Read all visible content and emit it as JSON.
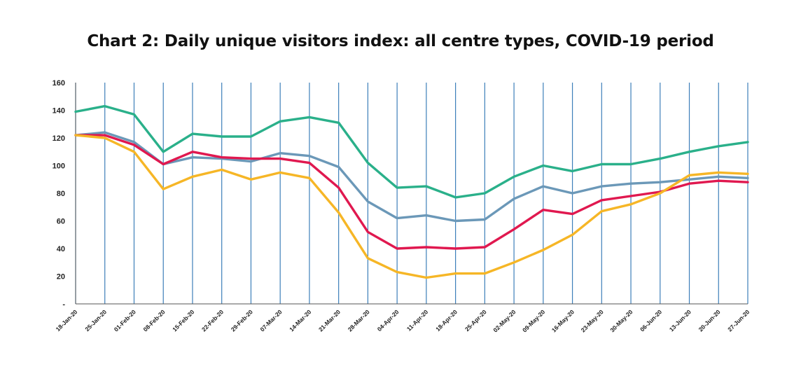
{
  "chart_data": {
    "type": "line",
    "title": "Chart 2: Daily unique visitors index: all centre types, COVID-19 period",
    "xlabel": "",
    "ylabel": "",
    "ylim": [
      0,
      160
    ],
    "yticks": [
      0,
      20,
      40,
      60,
      80,
      100,
      120,
      140,
      160
    ],
    "ytick_labels": [
      "-",
      "20",
      "40",
      "60",
      "80",
      "100",
      "120",
      "140",
      "160"
    ],
    "grid": "vertical",
    "legend": "none",
    "categories": [
      "18-Jan-20",
      "25-Jan-20",
      "01-Feb-20",
      "08-Feb-20",
      "15-Feb-20",
      "22-Feb-20",
      "29-Feb-20",
      "07-Mar-20",
      "14-Mar-20",
      "21-Mar-20",
      "28-Mar-20",
      "04-Apr-20",
      "11-Apr-20",
      "18-Apr-20",
      "25-Apr-20",
      "02-May-20",
      "09-May-20",
      "16-May-20",
      "23-May-20",
      "30-May-20",
      "06-Jun-20",
      "13-Jun-20",
      "20-Jun-20",
      "27-Jun-20"
    ],
    "series": [
      {
        "color": "#2ab08a",
        "values": [
          139,
          143,
          137,
          110,
          123,
          121,
          121,
          132,
          135,
          131,
          102,
          84,
          85,
          77,
          80,
          92,
          100,
          96,
          101,
          101,
          105,
          110,
          114,
          117
        ]
      },
      {
        "color": "#6b98b8",
        "values": [
          122,
          124,
          117,
          101,
          106,
          105,
          103,
          109,
          107,
          99,
          74,
          62,
          64,
          60,
          61,
          76,
          85,
          80,
          85,
          87,
          88,
          90,
          92,
          91
        ]
      },
      {
        "color": "#e0184f",
        "values": [
          122,
          122,
          115,
          101,
          110,
          106,
          105,
          105,
          102,
          84,
          52,
          40,
          41,
          40,
          41,
          54,
          68,
          65,
          75,
          78,
          81,
          87,
          89,
          88
        ]
      },
      {
        "color": "#f6b626",
        "values": [
          122,
          120,
          110,
          83,
          92,
          97,
          90,
          95,
          91,
          66,
          33,
          23,
          19,
          22,
          22,
          30,
          39,
          50,
          67,
          72,
          80,
          93,
          95,
          94
        ]
      }
    ]
  }
}
